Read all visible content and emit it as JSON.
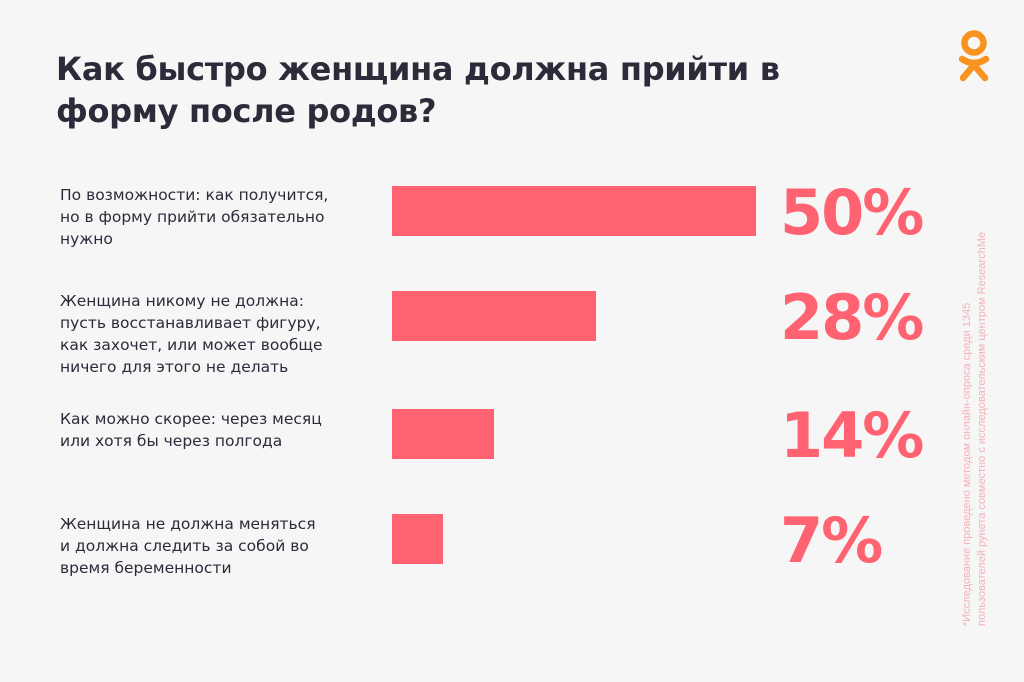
{
  "title": "Как быстро женщина должна прийти в форму после родов?",
  "chart_data": {
    "type": "bar",
    "orientation": "horizontal",
    "categories": [
      "По возможности: как получится,\nно в форму прийти обязательно\nнужно",
      "Женщина никому не должна:\nпусть восстанавливает фигуру,\nкак захочет, или может вообще\nничего для этого не делать",
      "Как можно скорее: через месяц\nили хотя бы через полгода",
      "Женщина не должна меняться\nи должна следить за собой во\nвремя беременности"
    ],
    "values": [
      50,
      28,
      14,
      7
    ],
    "value_labels": [
      "50%",
      "28%",
      "14%",
      "7%"
    ],
    "unit": "%",
    "xlim": [
      0,
      50
    ],
    "grid": false,
    "legend": "none",
    "bar_color": "#ff6271"
  },
  "footnote": "*Исследование проведено методом онлайн-опроса среди 1345 пользователей рунета совместно с исследовательским центром ResearchMe",
  "colors": {
    "accent": "#ff6271",
    "logo": "#f7931e",
    "text": "#2b2b3a",
    "footnote": "#f4b2b8"
  },
  "logo": {
    "icon": "odnoklassniki-logo"
  }
}
